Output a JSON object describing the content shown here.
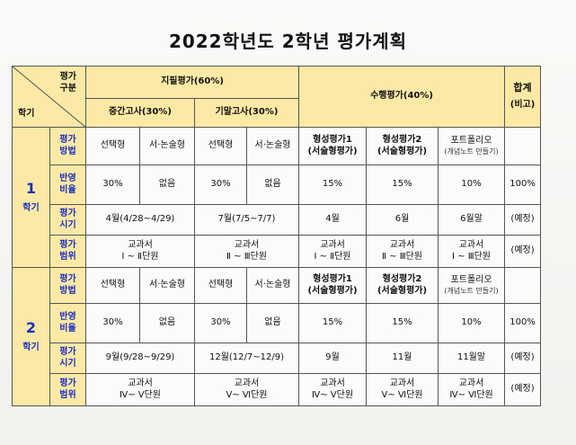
{
  "title": "2022학년도  2학년 평가계획",
  "header": {
    "corner_top": "평가\n구분",
    "corner_bottom": "학기",
    "jipil": "지필평가(60%)",
    "suhaeng": "수행평가(40%)",
    "total": "합계",
    "total_note": "(비고)",
    "midterm": "중간고사(30%)",
    "final": "기말고사(30%)"
  },
  "row_labels": {
    "method": "평가\n방법",
    "ratio": "반영\n비율",
    "timing": "평가\n시기",
    "scope": "평가\n범위"
  },
  "semesters": [
    {
      "num": "1",
      "label": "학기",
      "method": [
        "선택형",
        "서·논술형",
        "선택형",
        "서·논술형",
        "형성평가1\n(서술형평가)",
        "형성평가2\n(서술형평가)",
        "포트폴리오",
        "(개념노트 만들기)"
      ],
      "ratio": [
        "30%",
        "없음",
        "30%",
        "없음",
        "15%",
        "15%",
        "10%",
        "100%"
      ],
      "timing": [
        "4월(4/28~4/29)",
        "7월(7/5~7/7)",
        "4월",
        "6월",
        "6월말",
        "(예정)"
      ],
      "scope": [
        "교과서\nⅠ ~ Ⅱ단원",
        "교과서\nⅡ ~ Ⅲ단원",
        "교과서\nⅠ ~ Ⅱ단원",
        "교과서\nⅡ ~ Ⅲ단원",
        "교과서\nⅠ ~ Ⅲ단원",
        "(예정)"
      ]
    },
    {
      "num": "2",
      "label": "학기",
      "method": [
        "선택형",
        "서·논술형",
        "선택형",
        "서·논술형",
        "형성평가1\n(서술형평가)",
        "형성평가2\n(서술형평가)",
        "포트폴리오",
        "(개념노트 만들기)"
      ],
      "ratio": [
        "30%",
        "없음",
        "30%",
        "없음",
        "15%",
        "15%",
        "10%",
        "100%"
      ],
      "timing": [
        "9월(9/28~9/29)",
        "12월(12/7~12/9)",
        "9월",
        "11월",
        "11월말",
        "(예정)"
      ],
      "scope": [
        "교과서\nⅣ~ Ⅴ단원",
        "교과서\nⅤ~ Ⅵ단원",
        "교과서\nⅣ~ Ⅴ단원",
        "교과서\nⅤ~ Ⅵ단원",
        "교과서\nⅣ~ Ⅵ단원",
        "(예정)"
      ]
    }
  ]
}
